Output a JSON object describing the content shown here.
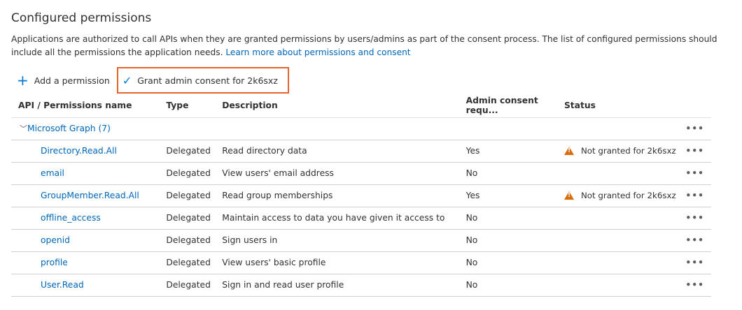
{
  "title": "Configured permissions",
  "description": "Applications are authorized to call APIs when they are granted permissions by users/admins as part of the consent process. The list of configured permissions should include all the permissions the application needs.",
  "learn_more": "Learn more about permissions and consent",
  "toolbar": {
    "add": "Add a permission",
    "grant": "Grant admin consent for 2k6sxz",
    "highlight_color": "#e8632a"
  },
  "columns": [
    "API / Permissions name",
    "Type",
    "Description",
    "Admin consent requ...",
    "Status"
  ],
  "group": "Microsoft Graph (7)",
  "rows": [
    {
      "name": "Directory.Read.All",
      "type": "Delegated",
      "description": "Read directory data",
      "admin": "Yes",
      "status": "Not granted for 2k6sxz"
    },
    {
      "name": "email",
      "type": "Delegated",
      "description": "View users' email address",
      "admin": "No",
      "status": ""
    },
    {
      "name": "GroupMember.Read.All",
      "type": "Delegated",
      "description": "Read group memberships",
      "admin": "Yes",
      "status": "Not granted for 2k6sxz"
    },
    {
      "name": "offline_access",
      "type": "Delegated",
      "description": "Maintain access to data you have given it access to",
      "admin": "No",
      "status": ""
    },
    {
      "name": "openid",
      "type": "Delegated",
      "description": "Sign users in",
      "admin": "No",
      "status": ""
    },
    {
      "name": "profile",
      "type": "Delegated",
      "description": "View users' basic profile",
      "admin": "No",
      "status": ""
    },
    {
      "name": "User.Read",
      "type": "Delegated",
      "description": "Sign in and read user profile",
      "admin": "No",
      "status": ""
    }
  ]
}
